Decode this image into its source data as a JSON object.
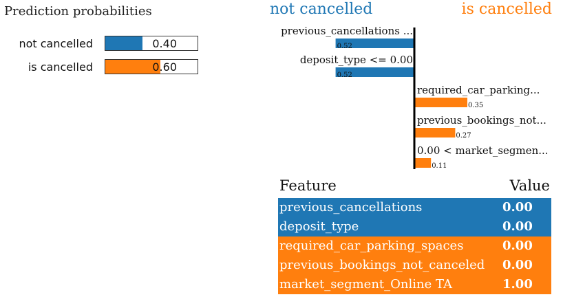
{
  "prediction": {
    "title": "Prediction probabilities",
    "items": [
      {
        "label": "not cancelled",
        "value": 0.4,
        "text": "0.40",
        "color": "#1f77b4"
      },
      {
        "label": "is cancelled",
        "value": 0.6,
        "text": "0.60",
        "color": "#ff7f0e"
      }
    ]
  },
  "chart_data": {
    "type": "bar",
    "headers": {
      "negative": "not cancelled",
      "positive": "is cancelled"
    },
    "colors": {
      "negative": "#1f77b4",
      "positive": "#ff7f0e"
    },
    "features": [
      {
        "label": "previous_cancellations ...",
        "value": -0.52,
        "text": "0.52"
      },
      {
        "label": "deposit_type <= 0.00",
        "value": -0.52,
        "text": "0.52"
      },
      {
        "label": "required_car_parking...",
        "value": 0.35,
        "text": "0.35"
      },
      {
        "label": "previous_bookings_not...",
        "value": 0.27,
        "text": "0.27"
      },
      {
        "label": "0.00 < market_segmen...",
        "value": 0.11,
        "text": "0.11"
      }
    ]
  },
  "table": {
    "header_feature": "Feature",
    "header_value": "Value",
    "rows": [
      {
        "feature": "previous_cancellations",
        "value": "0.00",
        "color": "#1f77b4"
      },
      {
        "feature": "deposit_type",
        "value": "0.00",
        "color": "#1f77b4"
      },
      {
        "feature": "required_car_parking_spaces",
        "value": "0.00",
        "color": "#ff7f0e"
      },
      {
        "feature": "previous_bookings_not_canceled",
        "value": "0.00",
        "color": "#ff7f0e"
      },
      {
        "feature": "market_segment_Online TA",
        "value": "1.00",
        "color": "#ff7f0e"
      }
    ]
  }
}
